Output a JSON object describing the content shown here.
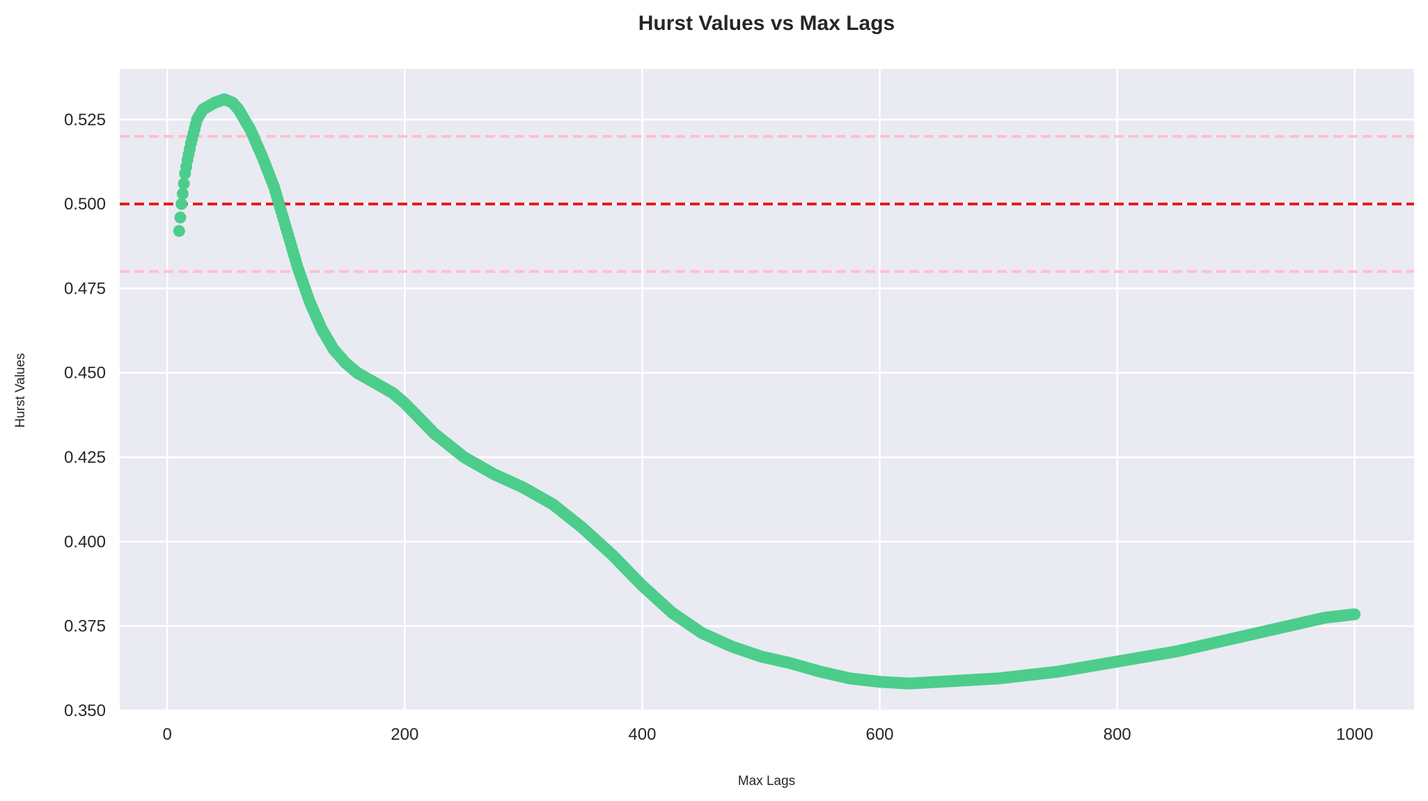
{
  "chart_data": {
    "type": "scatter",
    "title": "Hurst Values vs Max Lags",
    "xlabel": "Max Lags",
    "ylabel": "Hurst Values",
    "xlim": [
      -40,
      1050
    ],
    "ylim": [
      0.35,
      0.54
    ],
    "xticks": [
      0,
      200,
      400,
      600,
      800,
      1000
    ],
    "xtick_labels": [
      "0",
      "200",
      "400",
      "600",
      "800",
      "1000"
    ],
    "yticks": [
      0.35,
      0.375,
      0.4,
      0.425,
      0.45,
      0.475,
      0.5,
      0.525
    ],
    "ytick_labels": [
      "0.350",
      "0.375",
      "0.400",
      "0.425",
      "0.450",
      "0.475",
      "0.500",
      "0.525"
    ],
    "grid": true,
    "background_color": "#eaeaf2",
    "point_color": "#4ccd8c",
    "hlines": [
      {
        "y": 0.52,
        "color": "#ffc0cb",
        "style": "dashed"
      },
      {
        "y": 0.5,
        "color": "#e31a1c",
        "style": "dashed"
      },
      {
        "y": 0.48,
        "color": "#ffc0cb",
        "style": "dashed"
      }
    ],
    "series": [
      {
        "x_start": 10,
        "x_end": 1000,
        "x_step": 1,
        "curve_x": [
          10,
          11,
          12,
          13,
          14,
          15,
          17,
          20,
          25,
          30,
          40,
          48,
          55,
          60,
          70,
          80,
          90,
          100,
          110,
          120,
          130,
          140,
          150,
          160,
          170,
          180,
          190,
          200,
          225,
          250,
          275,
          300,
          325,
          350,
          375,
          400,
          425,
          450,
          475,
          500,
          525,
          550,
          575,
          600,
          625,
          650,
          675,
          700,
          725,
          750,
          775,
          800,
          825,
          850,
          875,
          900,
          925,
          950,
          975,
          1000
        ],
        "curve_y": [
          0.492,
          0.496,
          0.5,
          0.503,
          0.506,
          0.509,
          0.513,
          0.518,
          0.525,
          0.528,
          0.53,
          0.531,
          0.53,
          0.528,
          0.522,
          0.514,
          0.505,
          0.493,
          0.481,
          0.471,
          0.463,
          0.457,
          0.453,
          0.45,
          0.448,
          0.446,
          0.444,
          0.441,
          0.432,
          0.425,
          0.42,
          0.416,
          0.411,
          0.404,
          0.396,
          0.387,
          0.379,
          0.373,
          0.369,
          0.366,
          0.364,
          0.3615,
          0.3595,
          0.3585,
          0.358,
          0.3585,
          0.359,
          0.3595,
          0.3605,
          0.3615,
          0.363,
          0.3645,
          0.366,
          0.3675,
          0.3695,
          0.3715,
          0.3735,
          0.3755,
          0.3775,
          0.3785
        ]
      }
    ]
  }
}
